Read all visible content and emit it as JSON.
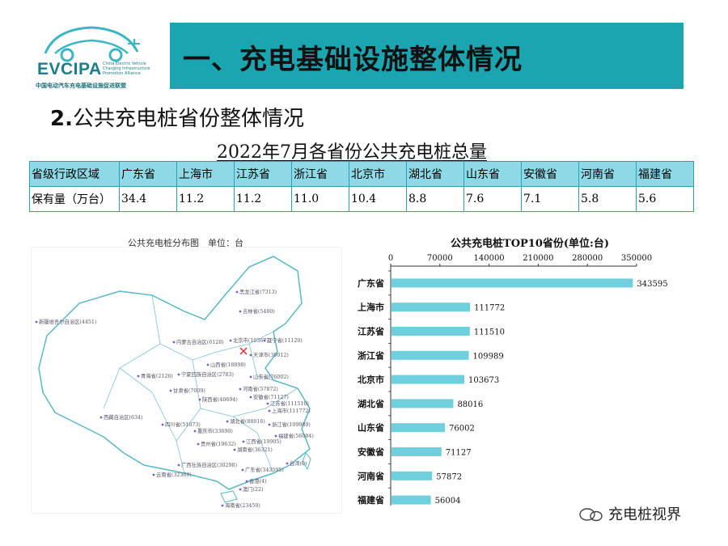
{
  "logo": {
    "name": "EVCIPA",
    "en": [
      "China Electric Vehicle",
      "Charging Infrastructure",
      "Promotion Alliance"
    ],
    "cn": "中国电动汽车充电基础设施促进联盟"
  },
  "header": {
    "title": "一、充电基础设施整体情况"
  },
  "subtitle": {
    "number": "2.",
    "text": "公共充电桩省份整体情况"
  },
  "table": {
    "title": "2022年7月各省份公共充电桩总量",
    "header_label": "省级行政区域",
    "value_label": "保有量（万台）",
    "provinces": [
      "广东省",
      "上海市",
      "江苏省",
      "浙江省",
      "北京市",
      "湖北省",
      "山东省",
      "安徽省",
      "河南省",
      "福建省"
    ],
    "values": [
      "34.4",
      "11.2",
      "11.2",
      "11.0",
      "10.4",
      "8.8",
      "7.6",
      "7.1",
      "5.8",
      "5.6"
    ]
  },
  "map": {
    "title": "公共充电桩分布图　单位：台",
    "labels": [
      "黑龙江省(7313)",
      "吉林省(5480)",
      "新疆维吾尔自治区(4451)",
      "内蒙古自治区(6128)",
      "北京市(103673)",
      "辽宁省(11120)",
      "天津市(30012)",
      "山西省(18898)",
      "宁夏回族自治区(2783)",
      "山东省(76002)",
      "青海省(2126)",
      "河南省(57872)",
      "甘肃省(7009)",
      "江苏省(111510)",
      "陕西省(40694)",
      "安徽省(71127)",
      "上海市(111772)",
      "西藏自治区(634)",
      "湖北省(88016)",
      "浙江省(109989)",
      "四川省(51073)",
      "重庆市(33690)",
      "江西省(19905)",
      "福建省(56004)",
      "贵州省(19632)",
      "湖南省(36321)",
      "广西壮族自治区(30298)",
      "云南省(32369)",
      "广东省(343595)",
      "台湾(0)",
      "香港(4)",
      "澳门(22)",
      "海南省(23459)"
    ]
  },
  "chart_data": {
    "type": "bar",
    "title": "公共充电桩TOP10省份(单位:台)",
    "categories": [
      "广东省",
      "上海市",
      "江苏省",
      "浙江省",
      "北京市",
      "湖北省",
      "山东省",
      "安徽省",
      "河南省",
      "福建省"
    ],
    "values": [
      343595,
      111772,
      111510,
      109989,
      103673,
      88016,
      76002,
      71127,
      57872,
      56004
    ],
    "xlim": [
      0,
      350000
    ],
    "ticks": [
      "0",
      "70000",
      "140000",
      "210000",
      "280000",
      "350000"
    ],
    "orientation": "horizontal",
    "bar_color": "#6fcfdc",
    "grid": false
  },
  "watermark": {
    "text": "充电桩视界"
  }
}
